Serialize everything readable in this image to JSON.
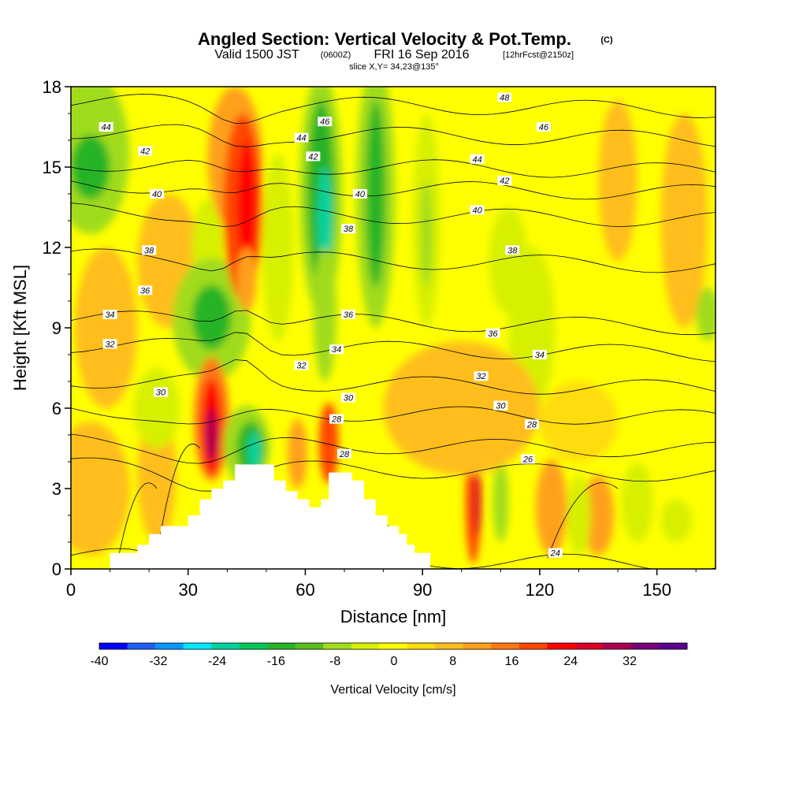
{
  "title": {
    "main": "Angled Section: Vertical Velocity & Pot.Temp.",
    "units": "(C)",
    "valid_a": "Valid 1500 JST",
    "valid_z": "(0600Z)",
    "valid_b": "FRI 16 Sep 2016",
    "fcst": "[12hrFcst@2150z]",
    "slice": "slice X,Y= 34,23@135°"
  },
  "chart_data": {
    "type": "heatmap",
    "xlabel": "Distance [nm]",
    "ylabel": "Height [Kft MSL]",
    "xlim": [
      0,
      165
    ],
    "ylim": [
      0,
      18
    ],
    "x_ticks": [
      "0",
      "30",
      "60",
      "90",
      "120",
      "150"
    ],
    "y_ticks": [
      "0",
      "3",
      "6",
      "9",
      "12",
      "15",
      "18"
    ],
    "x_tick_values": [
      0,
      30,
      60,
      90,
      120,
      150
    ],
    "y_tick_values": [
      0,
      3,
      6,
      9,
      12,
      15,
      18
    ],
    "field": "Vertical Velocity [cm/s]",
    "background_value": 0,
    "colorbar": {
      "title": "Vertical Velocity [cm/s]",
      "range": [
        -40,
        36
      ],
      "labels": [
        "-40",
        "-32",
        "-24",
        "-16",
        "-8",
        "0",
        "8",
        "16",
        "24",
        "32"
      ],
      "label_values": [
        -40,
        -32,
        -24,
        -16,
        -8,
        0,
        8,
        16,
        24,
        32
      ],
      "colors": [
        "#0000ff",
        "#1e5ef5",
        "#0a96ff",
        "#00e6ff",
        "#00d2a0",
        "#00c85a",
        "#28b428",
        "#5abe1e",
        "#a0dc1e",
        "#d7f000",
        "#ffff00",
        "#ffdc0a",
        "#ffbe1e",
        "#ffa01e",
        "#ff7814",
        "#ff4600",
        "#ff0000",
        "#dc0028",
        "#aa0050",
        "#780078",
        "#5a008c"
      ]
    },
    "cells": [
      {
        "x": 5,
        "y": 15.5,
        "rx": 10,
        "ry": 3,
        "v": -10
      },
      {
        "x": 5,
        "y": 15,
        "rx": 5,
        "ry": 1.2,
        "v": -16
      },
      {
        "x": 9,
        "y": 9,
        "rx": 8,
        "ry": 3,
        "v": 4
      },
      {
        "x": 5,
        "y": 3,
        "rx": 10,
        "ry": 2.5,
        "v": 6
      },
      {
        "x": 25,
        "y": 11.5,
        "rx": 8,
        "ry": 2.5,
        "v": 4
      },
      {
        "x": 22,
        "y": 3.5,
        "rx": 5,
        "ry": 2.5,
        "v": 5
      },
      {
        "x": 35,
        "y": 12,
        "rx": 4,
        "ry": 1.8,
        "v": -6
      },
      {
        "x": 36,
        "y": 9.3,
        "rx": 10,
        "ry": 2.3,
        "v": -8
      },
      {
        "x": 36,
        "y": 9.4,
        "rx": 5,
        "ry": 1.2,
        "v": -16
      },
      {
        "x": 22,
        "y": 6,
        "rx": 6,
        "ry": 1.5,
        "v": -4
      },
      {
        "x": 42,
        "y": 15.3,
        "rx": 7,
        "ry": 2.7,
        "v": 8
      },
      {
        "x": 44,
        "y": 13.5,
        "rx": 5,
        "ry": 3.5,
        "v": 16
      },
      {
        "x": 45,
        "y": 13.5,
        "rx": 2.5,
        "ry": 2.5,
        "v": 22
      },
      {
        "x": 45,
        "y": 10.8,
        "rx": 2.5,
        "ry": 1.2,
        "v": 10
      },
      {
        "x": 36,
        "y": 5.6,
        "rx": 4.5,
        "ry": 2.3,
        "v": 12
      },
      {
        "x": 36,
        "y": 5.3,
        "rx": 2.7,
        "ry": 1.8,
        "v": 22
      },
      {
        "x": 36,
        "y": 5.0,
        "rx": 1.5,
        "ry": 1.0,
        "v": 30
      },
      {
        "x": 45,
        "y": 4.6,
        "rx": 6,
        "ry": 1.5,
        "v": -8
      },
      {
        "x": 46,
        "y": 4.5,
        "rx": 3.5,
        "ry": 1.0,
        "v": -16
      },
      {
        "x": 47,
        "y": 4.4,
        "rx": 1.6,
        "ry": 0.7,
        "v": -24
      },
      {
        "x": 53,
        "y": 12,
        "rx": 4,
        "ry": 3.5,
        "v": -4
      },
      {
        "x": 64,
        "y": 14,
        "rx": 5.5,
        "ry": 4.5,
        "v": -10
      },
      {
        "x": 64,
        "y": 14,
        "rx": 3.5,
        "ry": 3.5,
        "v": -16
      },
      {
        "x": 65,
        "y": 13,
        "rx": 1.8,
        "ry": 2.0,
        "v": -24
      },
      {
        "x": 65,
        "y": 9.5,
        "rx": 3,
        "ry": 2.5,
        "v": -8
      },
      {
        "x": 78,
        "y": 14,
        "rx": 5,
        "ry": 5,
        "v": -8
      },
      {
        "x": 78,
        "y": 14,
        "rx": 2.5,
        "ry": 3.5,
        "v": -16
      },
      {
        "x": 91,
        "y": 13,
        "rx": 3.5,
        "ry": 4,
        "v": -6
      },
      {
        "x": 91,
        "y": 12.5,
        "rx": 1.5,
        "ry": 2,
        "v": -10
      },
      {
        "x": 66,
        "y": 4.7,
        "rx": 2.5,
        "ry": 1.5,
        "v": 16
      },
      {
        "x": 58,
        "y": 4.3,
        "rx": 2.5,
        "ry": 1.3,
        "v": 8
      },
      {
        "x": 103,
        "y": 2.5,
        "rx": 2,
        "ry": 2.3,
        "v": 16
      },
      {
        "x": 104,
        "y": 2.5,
        "rx": 1,
        "ry": 1.3,
        "v": 24
      },
      {
        "x": 110,
        "y": 2.5,
        "rx": 2,
        "ry": 1.5,
        "v": -10
      },
      {
        "x": 123,
        "y": 2.3,
        "rx": 4,
        "ry": 1.8,
        "v": 8
      },
      {
        "x": 135,
        "y": 2,
        "rx": 4,
        "ry": 1.5,
        "v": 8
      },
      {
        "x": 130,
        "y": 2,
        "rx": 3,
        "ry": 1.5,
        "v": -6
      },
      {
        "x": 145,
        "y": 2.5,
        "rx": 4,
        "ry": 1.5,
        "v": -4
      },
      {
        "x": 155,
        "y": 1.8,
        "rx": 4,
        "ry": 0.8,
        "v": -6
      },
      {
        "x": 118,
        "y": 9,
        "rx": 6,
        "ry": 3,
        "v": -6
      },
      {
        "x": 112,
        "y": 11.5,
        "rx": 5,
        "ry": 2,
        "v": -4
      },
      {
        "x": 140,
        "y": 14.5,
        "rx": 5,
        "ry": 3,
        "v": 5
      },
      {
        "x": 157,
        "y": 13,
        "rx": 6,
        "ry": 4,
        "v": 4
      },
      {
        "x": 163,
        "y": 9.5,
        "rx": 3,
        "ry": 1,
        "v": -8
      },
      {
        "x": 100,
        "y": 6,
        "rx": 20,
        "ry": 2.5,
        "v": 4
      },
      {
        "x": 130,
        "y": 5.5,
        "rx": 10,
        "ry": 1.5,
        "v": 3
      }
    ],
    "terrain": [
      [
        10,
        0.3
      ],
      [
        10,
        0.6
      ],
      [
        17,
        0.6
      ],
      [
        17,
        0.9
      ],
      [
        20,
        0.9
      ],
      [
        20,
        1.3
      ],
      [
        23,
        1.3
      ],
      [
        23,
        1.6
      ],
      [
        30,
        1.6
      ],
      [
        30,
        2.0
      ],
      [
        33,
        2.0
      ],
      [
        33,
        2.6
      ],
      [
        36,
        2.6
      ],
      [
        36,
        3.0
      ],
      [
        39,
        3.0
      ],
      [
        39,
        3.3
      ],
      [
        42,
        3.3
      ],
      [
        42,
        3.9
      ],
      [
        52,
        3.9
      ],
      [
        52,
        3.3
      ],
      [
        55,
        3.3
      ],
      [
        55,
        2.9
      ],
      [
        58,
        2.9
      ],
      [
        58,
        2.6
      ],
      [
        61,
        2.6
      ],
      [
        61,
        2.3
      ],
      [
        64,
        2.3
      ],
      [
        64,
        2.6
      ],
      [
        66,
        2.6
      ],
      [
        66,
        3.6
      ],
      [
        72,
        3.6
      ],
      [
        72,
        3.3
      ],
      [
        75,
        3.3
      ],
      [
        75,
        2.6
      ],
      [
        78,
        2.6
      ],
      [
        78,
        2.0
      ],
      [
        81,
        2.0
      ],
      [
        81,
        1.6
      ],
      [
        84,
        1.6
      ],
      [
        84,
        1.3
      ],
      [
        86,
        1.3
      ],
      [
        86,
        0.9
      ],
      [
        88,
        0.9
      ],
      [
        88,
        0.6
      ],
      [
        92,
        0.6
      ],
      [
        92,
        0.3
      ]
    ],
    "isentropes": [
      {
        "label": "24",
        "y": 0.35,
        "label_x": 124,
        "label_y": 0.6
      },
      {
        "label": "26",
        "y": 3.7,
        "label_x": 117,
        "label_y": 4.1
      },
      {
        "label": "28",
        "y": 4.6,
        "label_x": 118,
        "label_y": 5.4
      },
      {
        "label": "30",
        "y": 5.8,
        "label_x": 110,
        "label_y": 6.1
      },
      {
        "label": "32",
        "y": 6.9,
        "label_x": 105,
        "label_y": 7.2
      },
      {
        "label": "34",
        "y": 8.2,
        "label_x": 120,
        "label_y": 8.0
      },
      {
        "label": "36",
        "y": 9.2,
        "label_x": 108,
        "label_y": 8.8
      },
      {
        "label": "38",
        "y": 11.5,
        "label_x": 113,
        "label_y": 11.9
      },
      {
        "label": "40",
        "y": 13.2,
        "label_x": 104,
        "label_y": 13.4
      },
      {
        "label": "42",
        "y": 14.2,
        "label_x": 111,
        "label_y": 14.5
      },
      {
        "label": "44",
        "y": 15.0,
        "label_x": 104,
        "label_y": 15.3
      },
      {
        "label": "46",
        "y": 16.2,
        "label_x": 121,
        "label_y": 16.5
      },
      {
        "label": "48",
        "y": 17.3,
        "label_x": 111,
        "label_y": 17.6
      }
    ],
    "contour_labels": [
      {
        "text": "44",
        "x": 9,
        "y": 16.5
      },
      {
        "text": "42",
        "x": 19,
        "y": 15.6
      },
      {
        "text": "40",
        "x": 22,
        "y": 14.0
      },
      {
        "text": "38",
        "x": 20,
        "y": 11.9
      },
      {
        "text": "36",
        "x": 19,
        "y": 10.4
      },
      {
        "text": "34",
        "x": 10,
        "y": 9.5
      },
      {
        "text": "32",
        "x": 10,
        "y": 8.4
      },
      {
        "text": "30",
        "x": 23,
        "y": 6.6
      },
      {
        "text": "46",
        "x": 65,
        "y": 16.7
      },
      {
        "text": "44",
        "x": 59,
        "y": 16.1
      },
      {
        "text": "42",
        "x": 62,
        "y": 15.4
      },
      {
        "text": "40",
        "x": 74,
        "y": 14.0
      },
      {
        "text": "38",
        "x": 71,
        "y": 12.7
      },
      {
        "text": "36",
        "x": 71,
        "y": 9.5
      },
      {
        "text": "34",
        "x": 68,
        "y": 8.2
      },
      {
        "text": "32",
        "x": 59,
        "y": 7.6
      },
      {
        "text": "30",
        "x": 71,
        "y": 6.4
      },
      {
        "text": "28",
        "x": 68,
        "y": 5.6
      },
      {
        "text": "28",
        "x": 70,
        "y": 4.3
      }
    ]
  }
}
